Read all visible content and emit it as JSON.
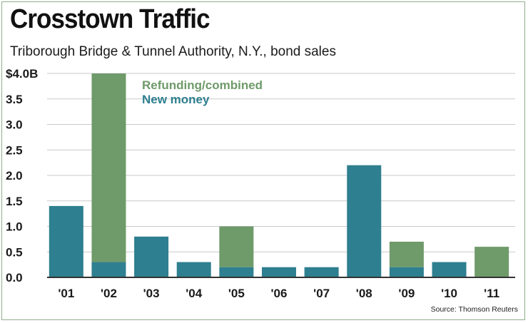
{
  "header": {
    "title": "Crosstown Traffic",
    "subtitle": "Triborough Bridge & Tunnel Authority, N.Y., bond sales"
  },
  "footer": {
    "source": "Source: Thomson Reuters"
  },
  "colors": {
    "new_money": "#2e7f8f",
    "refunding": "#6f9a6a",
    "gridline": "#c9c9c9",
    "axis": "#333333"
  },
  "chart_data": {
    "type": "bar",
    "stacked": true,
    "title": "Crosstown Traffic",
    "subtitle": "Triborough Bridge & Tunnel Authority, N.Y., bond sales",
    "xlabel": "",
    "ylabel": "",
    "ylim": [
      0,
      4.0
    ],
    "y_ticks": [
      0.0,
      0.5,
      1.0,
      1.5,
      2.0,
      2.5,
      3.0,
      3.5,
      4.0
    ],
    "y_tick_labels": [
      "0.0",
      "0.5",
      "1.0",
      "1.5",
      "2.0",
      "2.5",
      "3.0",
      "3.5",
      "$4.0B"
    ],
    "categories": [
      "'01",
      "'02",
      "'03",
      "'04",
      "'05",
      "'06",
      "'07",
      "'08",
      "'09",
      "'10",
      "'11"
    ],
    "series": [
      {
        "name": "New money",
        "color": "#2e7f8f",
        "values": [
          1.4,
          0.3,
          0.8,
          0.3,
          0.2,
          0.2,
          0.2,
          2.2,
          0.2,
          0.3,
          0.0
        ]
      },
      {
        "name": "Refunding/combined",
        "color": "#6f9a6a",
        "values": [
          0.0,
          3.7,
          0.0,
          0.0,
          0.8,
          0.0,
          0.0,
          0.0,
          0.5,
          0.0,
          0.6
        ]
      }
    ],
    "legend": [
      "Refunding/combined",
      "New money"
    ],
    "legend_position": "top-left",
    "grid": true
  }
}
